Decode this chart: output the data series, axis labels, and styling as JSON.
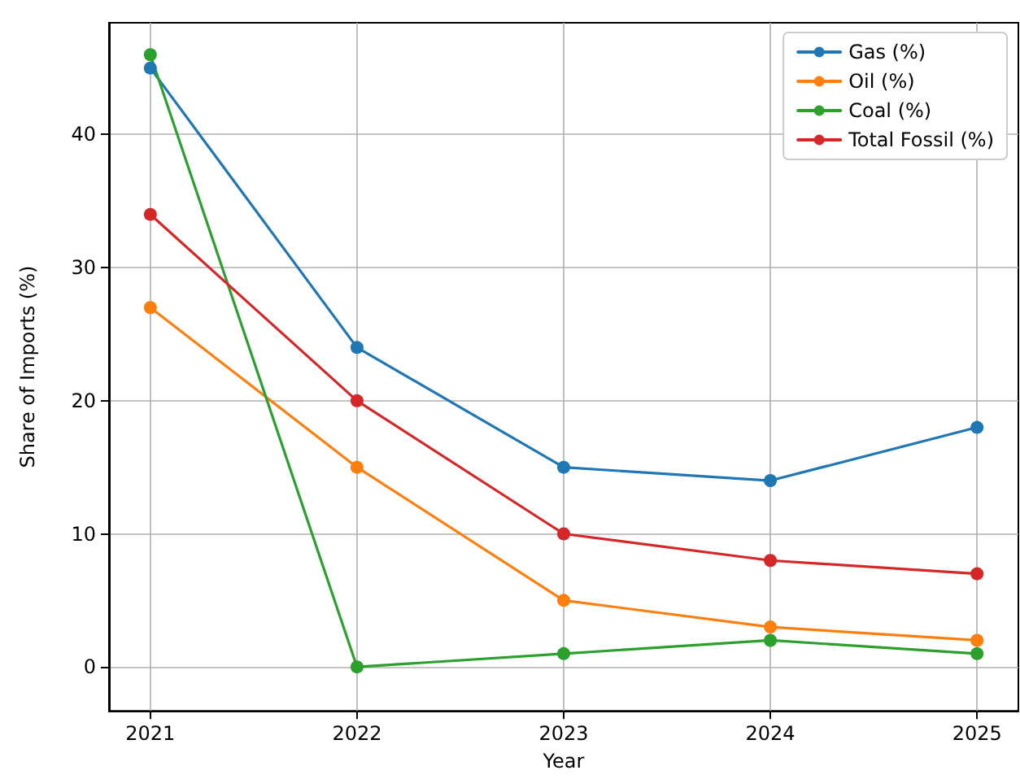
{
  "chart_data": {
    "type": "line",
    "xlabel": "Year",
    "ylabel": "Share of Imports (%)",
    "x": [
      2021,
      2022,
      2023,
      2024,
      2025
    ],
    "series": [
      {
        "name": "Gas (%)",
        "color": "#1f77b4",
        "values": [
          45,
          24,
          15,
          14,
          18
        ]
      },
      {
        "name": "Oil (%)",
        "color": "#ff7f0e",
        "values": [
          27,
          15,
          5,
          3,
          2
        ]
      },
      {
        "name": "Coal (%)",
        "color": "#2ca02c",
        "values": [
          46,
          0,
          1,
          2,
          1
        ]
      },
      {
        "name": "Total Fossil (%)",
        "color": "#d62728",
        "values": [
          34,
          20,
          10,
          8,
          7
        ]
      }
    ],
    "xlim": [
      2020.8,
      2025.2
    ],
    "xticks": [
      2021,
      2022,
      2023,
      2024,
      2025
    ],
    "ylim": [
      -3.3,
      48.4
    ],
    "yticks": [
      0,
      10,
      20,
      30,
      40
    ],
    "grid": true,
    "legend": "top right",
    "marker": "circle",
    "line_style": "solid"
  }
}
